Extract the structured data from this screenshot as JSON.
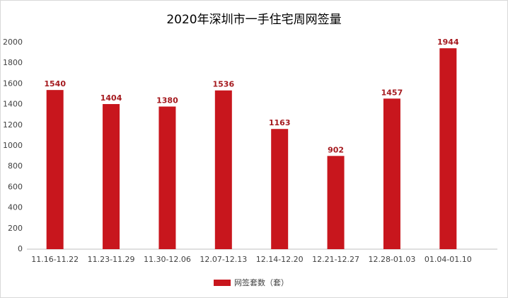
{
  "chart_data": {
    "type": "bar",
    "title": "2020年深圳市一手住宅周网签量",
    "categories": [
      "11.16-11.22",
      "11.23-11.29",
      "11.30-12.06",
      "12.07-12.13",
      "12.14-12.20",
      "12.21-12.27",
      "12.28-01.03",
      "01.04-01.10"
    ],
    "series": [
      {
        "name": "网签套数（套）",
        "color": "#c8161d",
        "values": [
          1540,
          1404,
          1380,
          1536,
          1163,
          902,
          1457,
          1944
        ]
      }
    ],
    "ylim": [
      0,
      2000
    ],
    "yticks": [
      0,
      200,
      400,
      600,
      800,
      1000,
      1200,
      1400,
      1600,
      1800,
      2000
    ],
    "grid": false,
    "legend": "bottom"
  }
}
